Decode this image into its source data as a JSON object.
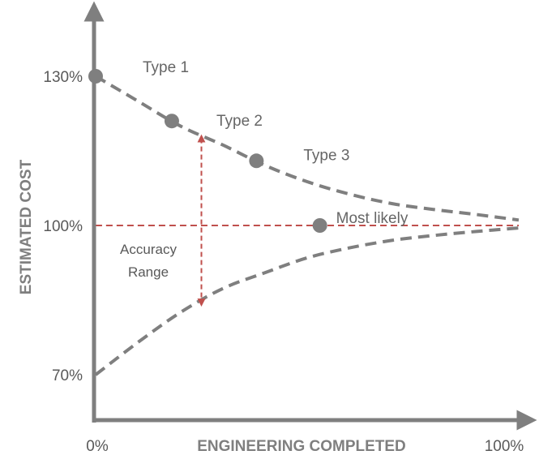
{
  "chart_data": {
    "type": "line",
    "title": "",
    "xlabel": "ENGINEERING COMPLETED",
    "ylabel": "ESTIMATED COST",
    "xlim": [
      0,
      100
    ],
    "ylim": [
      60,
      140
    ],
    "x_tick_labels": [
      {
        "value": 0,
        "label": "0%"
      },
      {
        "value": 100,
        "label": "100%"
      }
    ],
    "y_tick_labels": [
      {
        "value": 130,
        "label": "130%"
      },
      {
        "value": 100,
        "label": "100%"
      },
      {
        "value": 70,
        "label": "70%"
      }
    ],
    "series": [
      {
        "role": "upper-bound",
        "style": "dashed",
        "color": "#7f7f7f",
        "x": [
          0,
          10,
          20,
          30,
          40,
          50,
          60,
          70,
          80,
          90,
          100
        ],
        "y": [
          130,
          125,
          120,
          116.2,
          112.1,
          108.8,
          106.3,
          104.4,
          103.2,
          102.2,
          101.1
        ]
      },
      {
        "role": "lower-bound",
        "style": "dashed",
        "color": "#7f7f7f",
        "x": [
          0,
          10,
          20,
          30,
          40,
          50,
          60,
          70,
          80,
          90,
          100
        ],
        "y": [
          70,
          76.5,
          82.5,
          87.3,
          90.5,
          93.5,
          95.5,
          97,
          98,
          98.8,
          99.5
        ]
      },
      {
        "role": "most-likely",
        "style": "dashed",
        "color": "#c0504d",
        "x": [
          0,
          100
        ],
        "y": [
          100,
          100
        ]
      }
    ],
    "points": [
      {
        "x": 0,
        "y": 130,
        "label": "Type 1"
      },
      {
        "x": 18,
        "y": 121,
        "label": "Type 2"
      },
      {
        "x": 38,
        "y": 113,
        "label": "Type 3"
      },
      {
        "x": 53,
        "y": 100,
        "label": "Most likely"
      }
    ],
    "annotations": [
      {
        "type": "double-arrow",
        "x": 25,
        "y_from": 117.5,
        "y_to": 84.5,
        "label_lines": [
          "Accuracy",
          "Range"
        ],
        "color": "#c0504d"
      }
    ],
    "colors": {
      "axis": "#7f7f7f",
      "bounds": "#7f7f7f",
      "most_likely": "#c0504d",
      "marker": "#7f7f7f"
    },
    "grid": false,
    "legend": "none"
  }
}
